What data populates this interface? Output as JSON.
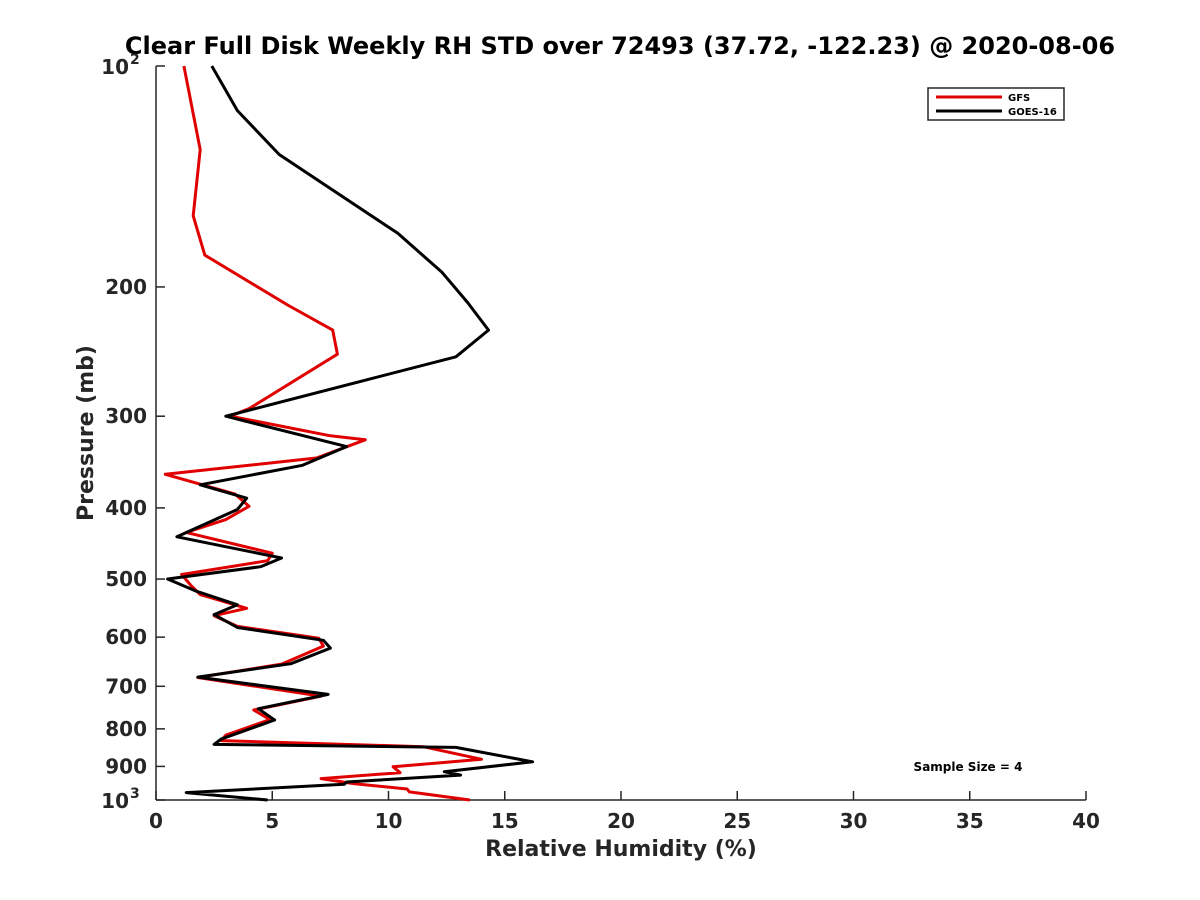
{
  "chart_data": {
    "type": "line",
    "title": "Clear Full Disk Weekly RH STD over 72493 (37.72, -122.23) @ 2020-08-06",
    "xlabel": "Relative Humidity (%)",
    "ylabel": "Pressure (mb)",
    "xlim": [
      0,
      40
    ],
    "ylim": [
      100,
      1000
    ],
    "yscale": "log",
    "y_reversed": true,
    "x_ticks": [
      "0",
      "5",
      "10",
      "15",
      "20",
      "25",
      "30",
      "35",
      "40"
    ],
    "y_ticks": [
      {
        "value": 100,
        "label": "10",
        "sup": "2"
      },
      {
        "value": 200,
        "label": "200",
        "sup": ""
      },
      {
        "value": 300,
        "label": "300",
        "sup": ""
      },
      {
        "value": 400,
        "label": "400",
        "sup": ""
      },
      {
        "value": 500,
        "label": "500",
        "sup": ""
      },
      {
        "value": 600,
        "label": "600",
        "sup": ""
      },
      {
        "value": 700,
        "label": "700",
        "sup": ""
      },
      {
        "value": 800,
        "label": "800",
        "sup": ""
      },
      {
        "value": 900,
        "label": "900",
        "sup": ""
      },
      {
        "value": 1000,
        "label": "10",
        "sup": "3"
      }
    ],
    "grid": false,
    "legend_position": "top-right",
    "annotation": "Sample Size = 4",
    "series": [
      {
        "name": "GFS",
        "color": "#e00000",
        "points": [
          [
            1.2,
            100
          ],
          [
            1.9,
            130
          ],
          [
            1.6,
            160
          ],
          [
            2.1,
            181
          ],
          [
            5.7,
            212
          ],
          [
            7.6,
            229
          ],
          [
            7.8,
            247
          ],
          [
            4.0,
            293
          ],
          [
            3.2,
            300
          ],
          [
            7.5,
            319
          ],
          [
            9.0,
            323
          ],
          [
            6.9,
            342
          ],
          [
            0.4,
            360
          ],
          [
            3.4,
            383
          ],
          [
            4.0,
            398
          ],
          [
            3.0,
            415
          ],
          [
            1.3,
            432
          ],
          [
            5.0,
            461
          ],
          [
            4.8,
            472
          ],
          [
            1.1,
            493
          ],
          [
            1.5,
            510
          ],
          [
            1.9,
            525
          ],
          [
            3.9,
            548
          ],
          [
            2.5,
            561
          ],
          [
            3.5,
            580
          ],
          [
            7.0,
            602
          ],
          [
            7.2,
            617
          ],
          [
            5.4,
            653
          ],
          [
            1.8,
            681
          ],
          [
            7.1,
            722
          ],
          [
            4.2,
            754
          ],
          [
            4.9,
            777
          ],
          [
            3.0,
            816
          ],
          [
            2.8,
            830
          ],
          [
            11.5,
            846
          ],
          [
            14.0,
            880
          ],
          [
            10.2,
            901
          ],
          [
            10.5,
            918
          ],
          [
            7.1,
            935
          ],
          [
            8.5,
            950
          ],
          [
            10.8,
            966
          ],
          [
            10.9,
            975
          ],
          [
            13.5,
            1000
          ]
        ]
      },
      {
        "name": "GOES-16",
        "color": "#000000",
        "points": [
          [
            2.4,
            100
          ],
          [
            3.5,
            115
          ],
          [
            5.3,
            132
          ],
          [
            10.4,
            169
          ],
          [
            12.3,
            191
          ],
          [
            13.4,
            210
          ],
          [
            14.3,
            229
          ],
          [
            12.9,
            249
          ],
          [
            3.0,
            300
          ],
          [
            8.2,
            330
          ],
          [
            6.3,
            350
          ],
          [
            1.9,
            372
          ],
          [
            3.9,
            388
          ],
          [
            3.5,
            402
          ],
          [
            0.9,
            438
          ],
          [
            5.4,
            468
          ],
          [
            4.5,
            481
          ],
          [
            0.5,
            500
          ],
          [
            1.7,
            519
          ],
          [
            3.5,
            542
          ],
          [
            2.5,
            559
          ],
          [
            3.5,
            582
          ],
          [
            7.2,
            606
          ],
          [
            7.5,
            621
          ],
          [
            5.8,
            652
          ],
          [
            1.8,
            680
          ],
          [
            7.4,
            718
          ],
          [
            4.4,
            751
          ],
          [
            5.1,
            778
          ],
          [
            2.8,
            826
          ],
          [
            2.5,
            840
          ],
          [
            12.9,
            848
          ],
          [
            16.2,
            887
          ],
          [
            12.4,
            915
          ],
          [
            13.1,
            925
          ],
          [
            8.2,
            945
          ],
          [
            8.1,
            952
          ],
          [
            1.3,
            977
          ],
          [
            4.8,
            1000
          ]
        ]
      }
    ]
  }
}
